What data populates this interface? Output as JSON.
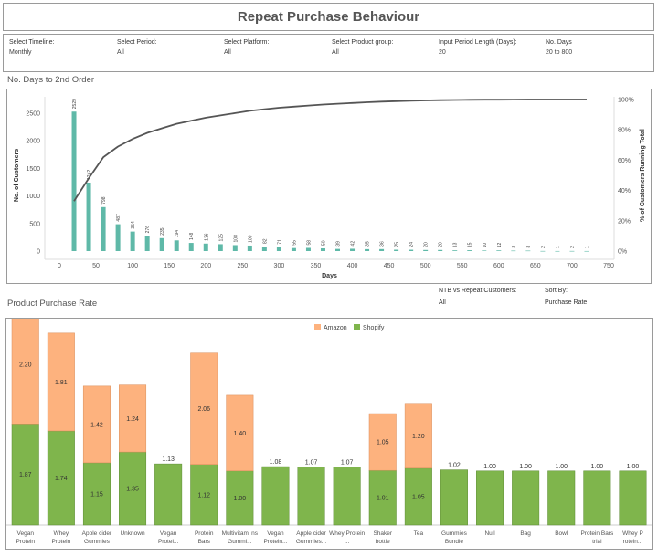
{
  "header": {
    "title": "Repeat Purchase Behaviour"
  },
  "filters": [
    {
      "label": "Select Timeline:",
      "value": "Monthly"
    },
    {
      "label": "Select Period:",
      "value": "All"
    },
    {
      "label": "Select Platform:",
      "value": "All"
    },
    {
      "label": "Select Product group:",
      "value": "All"
    },
    {
      "label": "Input Period Length (Days):",
      "value": "20"
    },
    {
      "label": "No. Days",
      "value": "20 to 800"
    }
  ],
  "section1": {
    "title": "No. Days to 2nd Order"
  },
  "section2": {
    "title": "Product Purchase Rate"
  },
  "controls": [
    {
      "label": "NTB vs Repeat Customers:",
      "value": "All"
    },
    {
      "label": "Sort By:",
      "value": "Purchase Rate"
    }
  ],
  "colors": {
    "teal": "#5fb9a8",
    "line": "#555555",
    "amazon": "#fdb27e",
    "shopify": "#7fb54c"
  },
  "chart_data": [
    {
      "type": "bar",
      "title": "No. Days to 2nd Order",
      "xlabel": "Days",
      "ylabel": "No. of Customers",
      "y2label": "% of Customers Running Total",
      "x": [
        20,
        40,
        60,
        80,
        100,
        120,
        140,
        160,
        180,
        200,
        220,
        240,
        260,
        280,
        300,
        320,
        340,
        360,
        380,
        400,
        420,
        440,
        460,
        480,
        500,
        520,
        540,
        560,
        580,
        600,
        620,
        640,
        660,
        680,
        700,
        720
      ],
      "values": [
        2529,
        1242,
        798,
        487,
        354,
        276,
        235,
        194,
        148,
        136,
        125,
        108,
        100,
        82,
        71,
        55,
        58,
        50,
        39,
        42,
        35,
        36,
        25,
        24,
        20,
        20,
        13,
        15,
        10,
        12,
        8,
        8,
        2,
        1,
        2,
        1
      ],
      "running_total_pct": [
        33,
        48,
        62,
        69,
        74,
        78,
        81,
        84,
        86,
        88,
        89.5,
        91,
        92.5,
        93.6,
        94.6,
        95.3,
        96,
        96.7,
        97.2,
        97.7,
        98.2,
        98.6,
        98.9,
        99.2,
        99.4,
        99.6,
        99.7,
        99.8,
        99.85,
        99.9,
        99.95,
        99.97,
        99.98,
        99.99,
        100,
        100
      ],
      "xlim": [
        0,
        750
      ],
      "ylim": [
        0,
        2700
      ],
      "x_ticks": [
        0,
        50,
        100,
        150,
        200,
        250,
        300,
        350,
        400,
        450,
        500,
        550,
        600,
        650,
        700,
        750
      ],
      "y_ticks": [
        0,
        500,
        1000,
        1500,
        2000,
        2500
      ],
      "y2_ticks": [
        "0%",
        "20%",
        "40%",
        "60%",
        "80%",
        "100%"
      ]
    },
    {
      "type": "bar",
      "stacked": true,
      "title": "Product Purchase Rate",
      "legend": [
        "Amazon",
        "Shopify"
      ],
      "legend_position": "top",
      "categories": [
        "Vegan Protein",
        "Whey Protein",
        "Apple cider Gummies",
        "Unknown",
        "Vegan Protei...",
        "Protein Bars",
        "Multivitami ns Gummi...",
        "Vegan Protein...",
        "Apple cider Gummies...",
        "Whey Protein ...",
        "Shaker bottle",
        "Tea",
        "Gummies Bundle",
        "Null",
        "Bag",
        "Bowl",
        "Protein Bars trial",
        "Whey P rotein..."
      ],
      "series": [
        {
          "name": "Shopify",
          "values": [
            1.87,
            1.74,
            1.15,
            1.35,
            1.13,
            1.12,
            1.0,
            1.08,
            1.07,
            1.07,
            1.01,
            1.05,
            1.02,
            1.0,
            1.0,
            1.0,
            1.0,
            1.0
          ]
        },
        {
          "name": "Amazon",
          "values": [
            2.2,
            1.81,
            1.42,
            1.24,
            null,
            2.06,
            1.4,
            null,
            null,
            null,
            1.05,
            1.2,
            null,
            null,
            null,
            null,
            null,
            null
          ]
        }
      ],
      "data_labels": {
        "shopify": [
          "1.87",
          "1.74",
          "1.15",
          "1.35",
          "1.13",
          "1.12",
          "1.00",
          "1.08",
          "1.07",
          "1.07",
          "1.01",
          "1.05",
          "1.02",
          "1.00",
          "1.00",
          "1.00",
          "1.00",
          "1.00"
        ],
        "amazon": [
          "2.20",
          "1.81",
          "1.42",
          "1.24",
          "",
          "2.06",
          "1.40",
          "",
          "",
          "",
          "1.05",
          "1.20",
          "",
          "",
          "",
          "",
          "",
          ""
        ]
      }
    }
  ]
}
